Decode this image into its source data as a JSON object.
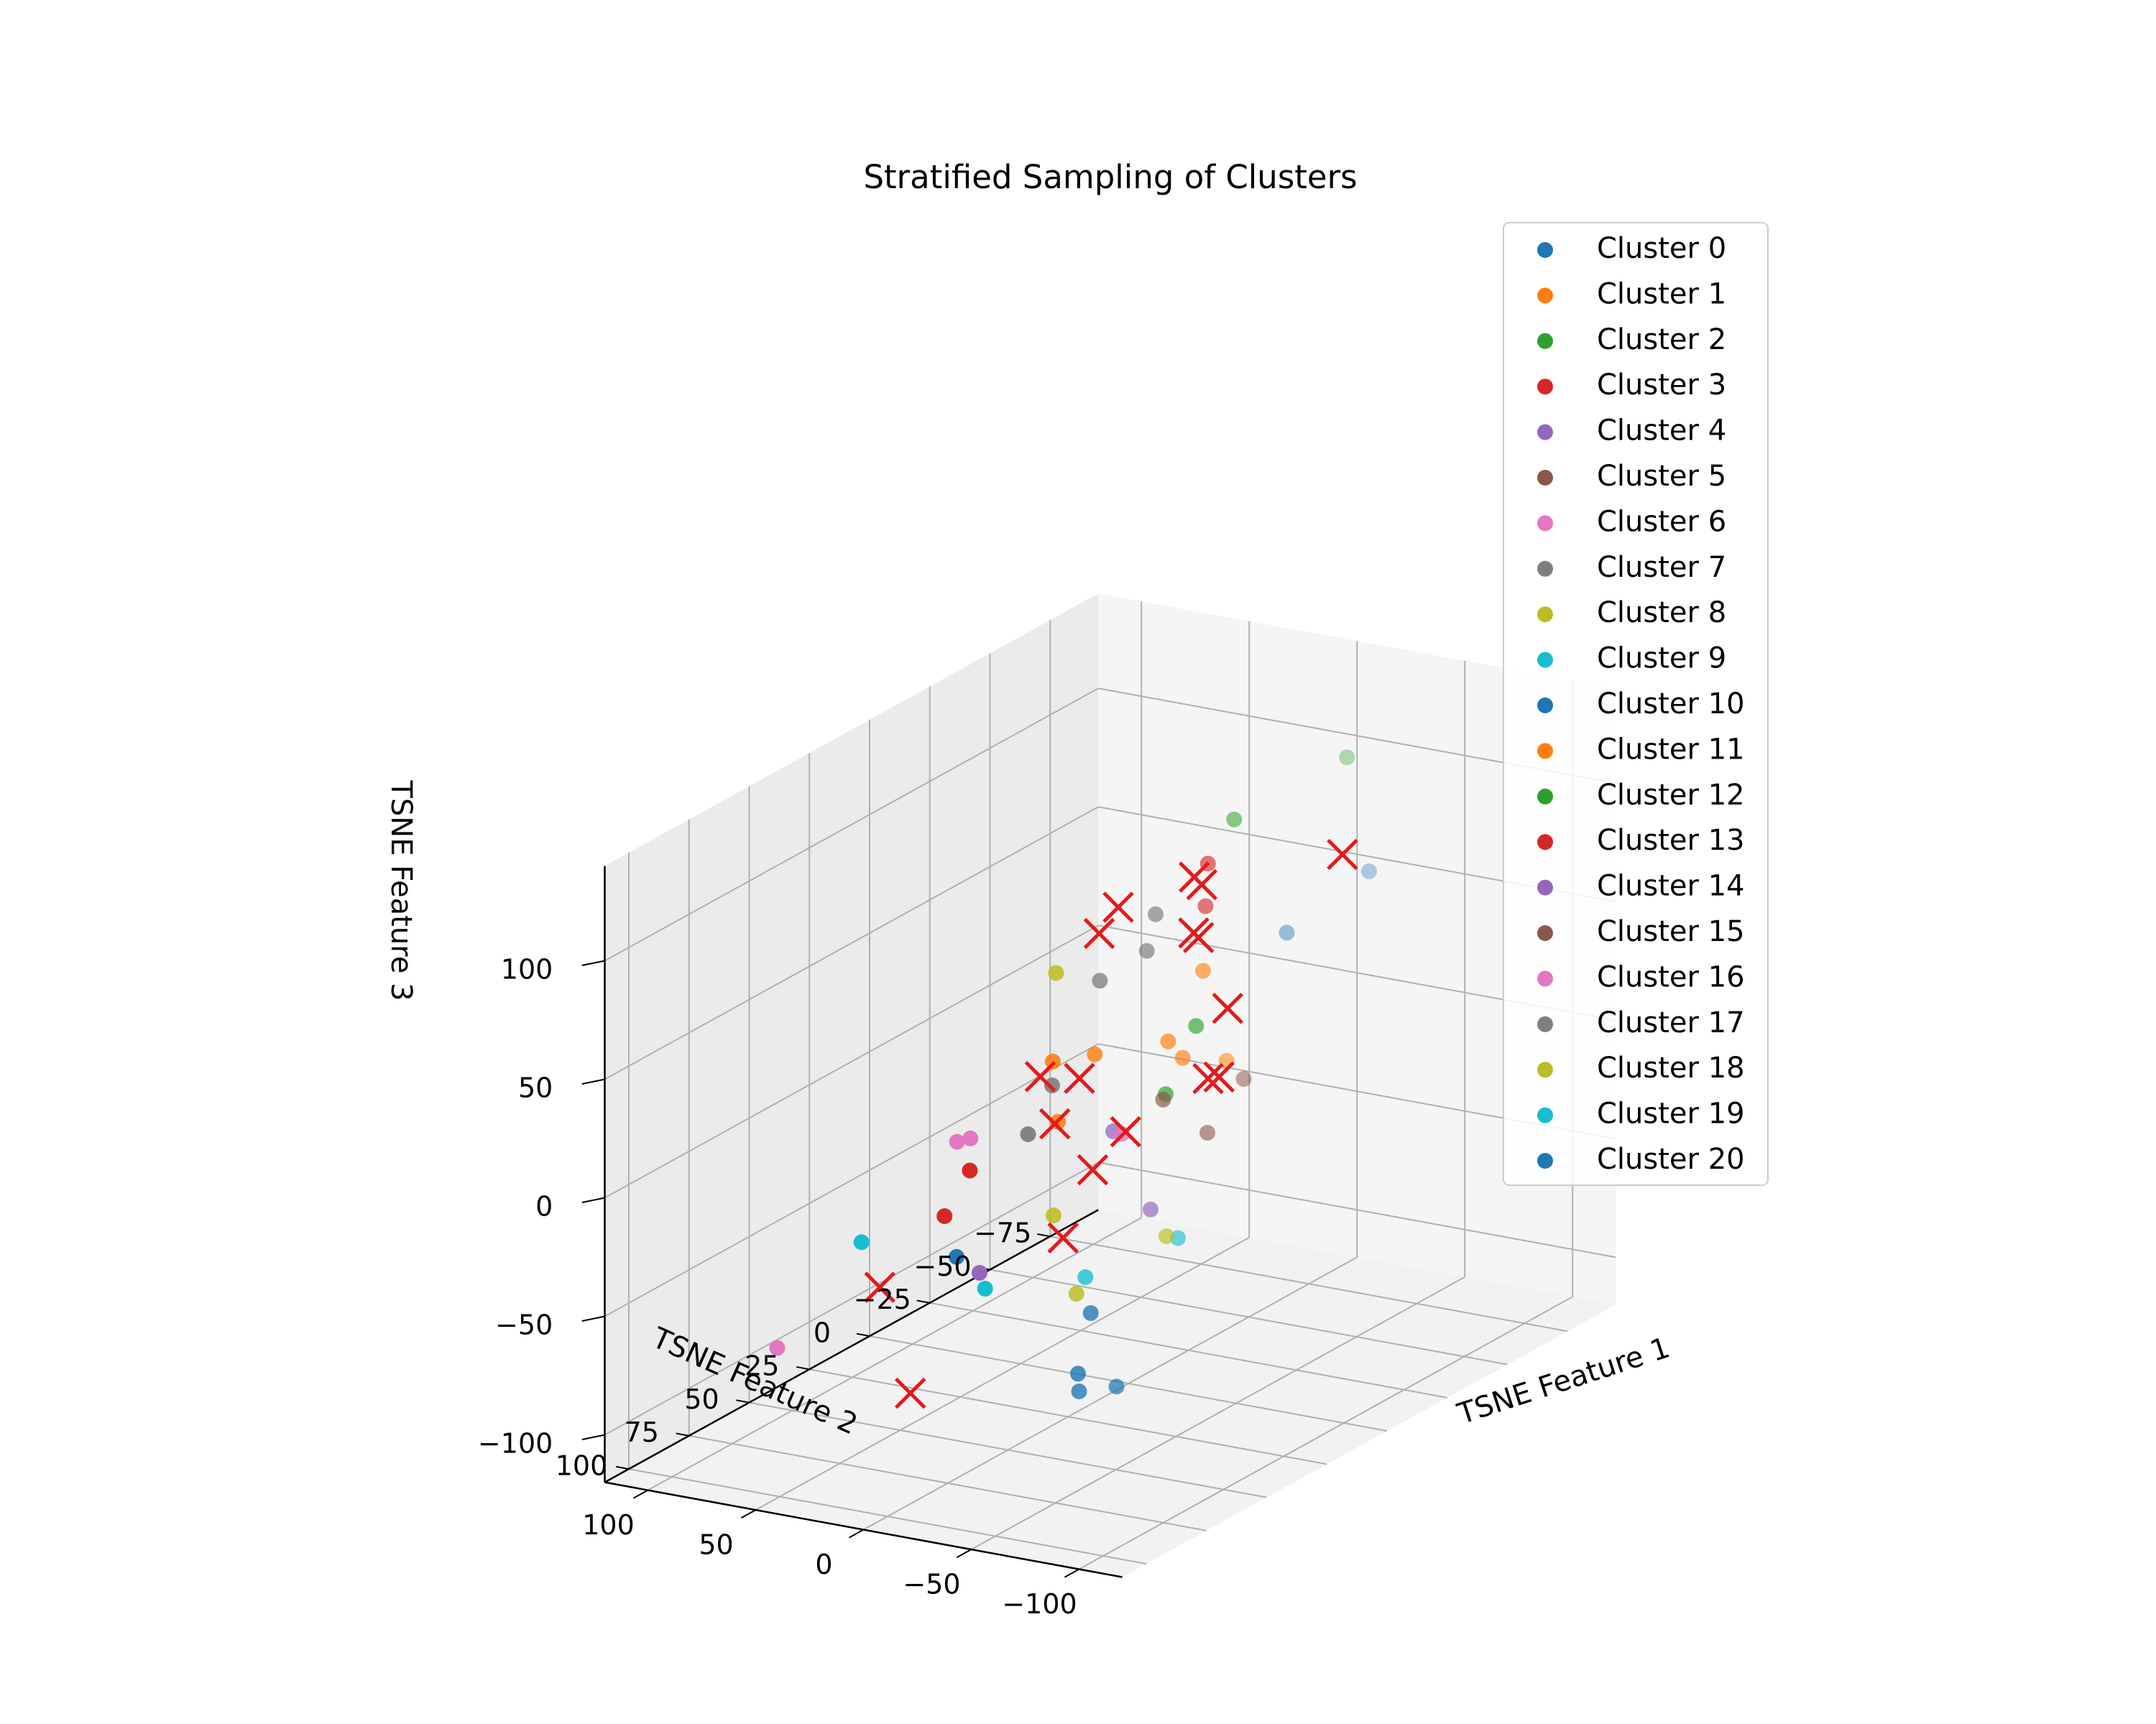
{
  "chart_data": {
    "type": "scatter",
    "projection": "3d",
    "title": "Stratified Sampling of Clusters",
    "xlabel": "TSNE Feature 1",
    "ylabel": "TSNE Feature 2",
    "zlabel": "TSNE Feature 3",
    "grid": true,
    "legend_position": "top-right",
    "x_ticks": [
      "−100",
      "−50",
      "0",
      "50",
      "100"
    ],
    "y_ticks": [
      "−75",
      "−50",
      "−25",
      "0",
      "25",
      "50",
      "75",
      "100"
    ],
    "z_ticks": [
      "−100",
      "−50",
      "0",
      "50",
      "100"
    ],
    "xlim": [
      -120,
      120
    ],
    "ylim": [
      -95,
      110
    ],
    "zlim": [
      -120,
      140
    ],
    "sample_marker": {
      "shape": "x",
      "color": "#e41a1c"
    },
    "series": [
      {
        "name": "Cluster 0",
        "color": "#1f77b4",
        "points": [
          [
            -92,
            98,
            -20
          ],
          [
            -100,
            110,
            -45
          ],
          [
            -66,
            80,
            -60
          ]
        ]
      },
      {
        "name": "Cluster 1",
        "color": "#ff7f0e",
        "points": [
          [
            25,
            -45,
            -12
          ],
          [
            15,
            -30,
            5
          ],
          [
            10,
            5,
            20
          ]
        ]
      },
      {
        "name": "Cluster 2",
        "color": "#2ca02c",
        "points": [
          [
            30,
            -55,
            -5
          ],
          [
            5,
            -20,
            -10
          ]
        ]
      },
      {
        "name": "Cluster 3",
        "color": "#d62728",
        "points": [
          [
            58,
            -85,
            42
          ],
          [
            35,
            45,
            -30
          ]
        ]
      },
      {
        "name": "Cluster 4",
        "color": "#9467bd",
        "points": [
          [
            2,
            60,
            -40
          ],
          [
            -55,
            40,
            -15
          ]
        ]
      },
      {
        "name": "Cluster 5",
        "color": "#8c564b",
        "points": [
          [
            8,
            -40,
            -38
          ],
          [
            -20,
            -30,
            -5
          ]
        ]
      },
      {
        "name": "Cluster 6",
        "color": "#e377c2",
        "points": [
          [
            40,
            110,
            -50
          ],
          [
            85,
            -5,
            -35
          ]
        ]
      },
      {
        "name": "Cluster 7",
        "color": "#7f7f7f",
        "points": [
          [
            -70,
            55,
            105
          ],
          [
            -35,
            20,
            95
          ],
          [
            80,
            -30,
            -45
          ]
        ]
      },
      {
        "name": "Cluster 8",
        "color": "#bcbd22",
        "points": [
          [
            -10,
            40,
            -25
          ],
          [
            0,
            30,
            70
          ]
        ]
      },
      {
        "name": "Cluster 9",
        "color": "#17becf",
        "points": [
          [
            -90,
            60,
            -10
          ],
          [
            40,
            75,
            -25
          ]
        ]
      },
      {
        "name": "Cluster 10",
        "color": "#1f77b4",
        "points": [
          [
            0,
            -100,
            40
          ],
          [
            -40,
            -30,
            60
          ]
        ]
      },
      {
        "name": "Cluster 11",
        "color": "#ff7f0e",
        "points": [
          [
            10,
            -40,
            30
          ],
          [
            -40,
            -5,
            20
          ],
          [
            35,
            0,
            10
          ],
          [
            55,
            -20,
            -30
          ]
        ]
      },
      {
        "name": "Cluster 12",
        "color": "#2ca02c",
        "points": [
          [
            -10,
            -35,
            100
          ],
          [
            -40,
            -55,
            120
          ]
        ]
      },
      {
        "name": "Cluster 13",
        "color": "#d62728",
        "points": [
          [
            20,
            -50,
            50
          ],
          [
            40,
            30,
            -20
          ]
        ]
      },
      {
        "name": "Cluster 14",
        "color": "#9467bd",
        "points": [
          [
            -60,
            60,
            30
          ]
        ]
      },
      {
        "name": "Cluster 15",
        "color": "#8c564b",
        "points": [
          [
            -5,
            -10,
            -5
          ]
        ]
      },
      {
        "name": "Cluster 16",
        "color": "#e377c2",
        "points": [
          [
            70,
            -60,
            -60
          ],
          [
            90,
            -15,
            -40
          ]
        ]
      },
      {
        "name": "Cluster 17",
        "color": "#7f7f7f",
        "points": [
          [
            80,
            -40,
            -30
          ],
          [
            -65,
            70,
            100
          ]
        ]
      },
      {
        "name": "Cluster 18",
        "color": "#bcbd22",
        "points": [
          [
            -15,
            35,
            -60
          ],
          [
            -40,
            20,
            -40
          ]
        ]
      },
      {
        "name": "Cluster 19",
        "color": "#17becf",
        "points": [
          [
            -75,
            85,
            -15
          ],
          [
            5,
            55,
            -50
          ]
        ]
      },
      {
        "name": "Cluster 20",
        "color": "#1f77b4",
        "points": [
          [
            -95,
            90,
            -55
          ],
          [
            35,
            40,
            -50
          ]
        ]
      }
    ],
    "sampled_points": [
      [
        -10,
        -80,
        60
      ],
      [
        5,
        -35,
        70
      ],
      [
        -25,
        -5,
        95
      ],
      [
        40,
        -65,
        25
      ],
      [
        -20,
        30,
        90
      ],
      [
        -5,
        35,
        10
      ],
      [
        -20,
        45,
        -30
      ],
      [
        50,
        -30,
        -55
      ],
      [
        30,
        -60,
        -30
      ],
      [
        60,
        -95,
        -25
      ],
      [
        -40,
        40,
        110
      ],
      [
        -75,
        40,
        105
      ],
      [
        45,
        -20,
        -10
      ],
      [
        -70,
        25,
        35
      ],
      [
        -15,
        50,
        40
      ],
      [
        85,
        -75,
        -70
      ],
      [
        -5,
        95,
        -70
      ],
      [
        65,
        45,
        -65
      ]
    ]
  }
}
